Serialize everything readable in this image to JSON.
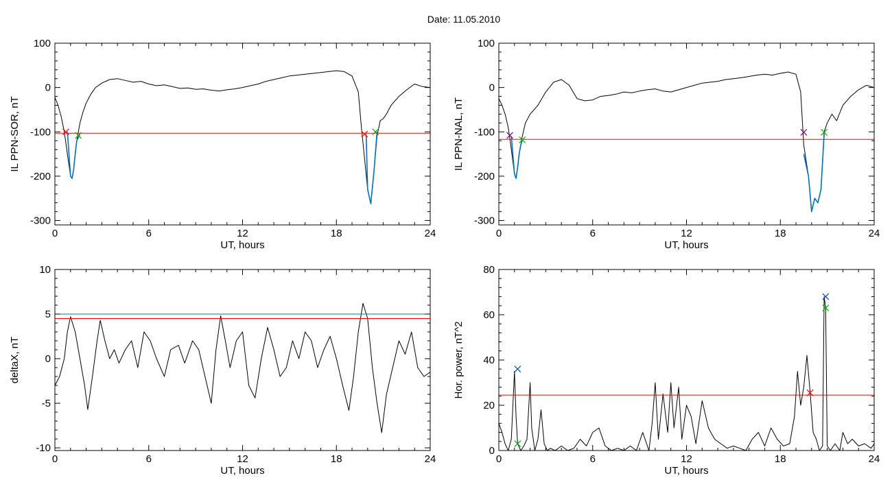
{
  "page_title": "Date:  11.05.2010",
  "chart_data": [
    {
      "type": "line",
      "ylabel": "IL PPN-SOR, nT",
      "xlabel": "UT, hours",
      "xlim": [
        0,
        24
      ],
      "ylim": [
        -310,
        100
      ],
      "xticks": [
        0,
        6,
        12,
        18,
        24
      ],
      "yticks": [
        -300,
        -200,
        -100,
        0,
        100
      ],
      "grid": false,
      "colors": {
        "signal": "#000000",
        "segment": "#0070c0",
        "threshold": "#ff0000",
        "start_marker": "#ff0000",
        "end_marker": "#00b000"
      },
      "series": [
        {
          "role": "signal",
          "x": [
            0,
            0.2,
            0.4,
            0.6,
            0.8,
            1.0,
            1.1,
            1.2,
            1.3,
            1.4,
            1.5,
            1.6,
            1.8,
            2.0,
            2.3,
            2.6,
            3.0,
            3.5,
            4.0,
            4.5,
            5.0,
            5.5,
            6.0,
            6.5,
            7.0,
            7.5,
            8.0,
            8.5,
            9.0,
            9.5,
            10.0,
            10.5,
            11.0,
            11.5,
            12.0,
            12.5,
            13.0,
            13.5,
            14.0,
            14.5,
            15.0,
            15.5,
            16.0,
            16.5,
            17.0,
            17.5,
            18.0,
            18.5,
            19.0,
            19.4,
            19.6,
            19.8,
            20.0,
            20.2,
            20.4,
            20.6,
            20.8,
            21.0,
            21.2,
            21.5,
            22.0,
            22.5,
            23.0,
            23.5,
            24.0
          ],
          "y": [
            -22,
            -40,
            -65,
            -100,
            -150,
            -200,
            -205,
            -185,
            -150,
            -120,
            -100,
            -80,
            -55,
            -35,
            -15,
            0,
            10,
            18,
            20,
            16,
            12,
            14,
            8,
            4,
            6,
            2,
            -2,
            -1,
            -4,
            -3,
            -6,
            -8,
            -5,
            -3,
            0,
            4,
            8,
            14,
            18,
            22,
            26,
            28,
            30,
            32,
            34,
            36,
            38,
            36,
            26,
            -10,
            -90,
            -160,
            -230,
            -262,
            -190,
            -110,
            -75,
            -70,
            -60,
            -40,
            -20,
            -5,
            8,
            2,
            0
          ]
        },
        {
          "role": "segment",
          "x": [
            0.8,
            1.0,
            1.1,
            1.2,
            1.3,
            1.4,
            1.6
          ],
          "y": [
            -100,
            -200,
            -205,
            -185,
            -150,
            -120,
            -105
          ]
        },
        {
          "role": "segment",
          "x": [
            19.9,
            20.0,
            20.2,
            20.4,
            20.6
          ],
          "y": [
            -105,
            -230,
            -262,
            -190,
            -100
          ]
        },
        {
          "role": "threshold",
          "x": [
            0,
            24
          ],
          "y": [
            -103,
            -103
          ]
        }
      ],
      "markers": [
        {
          "role": "start_marker",
          "x": 0.7,
          "y": -100
        },
        {
          "role": "end_marker",
          "x": 1.5,
          "y": -108
        },
        {
          "role": "start_marker",
          "x": 19.8,
          "y": -105
        },
        {
          "role": "end_marker",
          "x": 20.5,
          "y": -100
        }
      ]
    },
    {
      "type": "line",
      "ylabel": "IL PPN-NAL, nT",
      "xlabel": "UT, hours",
      "xlim": [
        0,
        24
      ],
      "ylim": [
        -310,
        100
      ],
      "xticks": [
        0,
        6,
        12,
        18,
        24
      ],
      "yticks": [
        -300,
        -200,
        -100,
        0,
        100
      ],
      "grid": false,
      "colors": {
        "signal": "#000000",
        "segment": "#0070c0",
        "threshold": "#ff0000",
        "start_marker": "#800080",
        "end_marker": "#00b000"
      },
      "series": [
        {
          "role": "signal",
          "x": [
            0,
            0.2,
            0.4,
            0.6,
            0.8,
            1.0,
            1.1,
            1.2,
            1.3,
            1.4,
            1.5,
            1.7,
            2.0,
            2.5,
            3.0,
            3.5,
            4.0,
            4.5,
            5.0,
            5.5,
            6.0,
            6.5,
            7.0,
            7.5,
            8.0,
            8.5,
            9.0,
            9.5,
            10.0,
            10.5,
            11.0,
            11.5,
            12.0,
            12.5,
            13.0,
            13.5,
            14.0,
            14.5,
            15.0,
            15.5,
            16.0,
            16.5,
            17.0,
            17.5,
            18.0,
            18.5,
            19.0,
            19.3,
            19.5,
            19.8,
            20.0,
            20.2,
            20.4,
            20.6,
            20.8,
            21.0,
            21.3,
            21.6,
            22.0,
            22.5,
            23.0,
            23.5,
            24.0
          ],
          "y": [
            -25,
            -40,
            -60,
            -90,
            -140,
            -195,
            -205,
            -180,
            -150,
            -130,
            -110,
            -80,
            -60,
            -40,
            -10,
            12,
            18,
            5,
            -25,
            -30,
            -28,
            -20,
            -18,
            -15,
            -10,
            -12,
            -8,
            -5,
            -3,
            -8,
            -10,
            -5,
            0,
            5,
            10,
            12,
            14,
            18,
            20,
            22,
            25,
            28,
            30,
            28,
            32,
            35,
            30,
            -10,
            -130,
            -200,
            -280,
            -250,
            -260,
            -230,
            -100,
            -80,
            -60,
            -75,
            -40,
            -20,
            -5,
            5,
            0
          ]
        },
        {
          "role": "segment",
          "x": [
            0.8,
            1.0,
            1.1,
            1.2,
            1.3,
            1.4,
            1.5
          ],
          "y": [
            -110,
            -195,
            -205,
            -180,
            -150,
            -130,
            -118
          ]
        },
        {
          "role": "segment",
          "x": [
            19.5,
            19.8,
            20.0,
            20.2,
            20.4,
            20.6,
            20.8
          ],
          "y": [
            -150,
            -200,
            -280,
            -250,
            -260,
            -230,
            -105
          ]
        },
        {
          "role": "threshold",
          "x": [
            0,
            24
          ],
          "y": [
            -117,
            -117
          ]
        }
      ],
      "markers": [
        {
          "role": "start_marker",
          "x": 0.7,
          "y": -108
        },
        {
          "role": "end_marker",
          "x": 1.5,
          "y": -118
        },
        {
          "role": "start_marker",
          "x": 19.5,
          "y": -101
        },
        {
          "role": "end_marker",
          "x": 20.8,
          "y": -101
        }
      ]
    },
    {
      "type": "line",
      "ylabel": "deltaX, nT",
      "xlabel": "UT, hours",
      "xlim": [
        0,
        24
      ],
      "ylim": [
        -10.3,
        10
      ],
      "xticks": [
        0,
        6,
        12,
        18,
        24
      ],
      "yticks": [
        -10,
        -5,
        0,
        5,
        10
      ],
      "grid": false,
      "colors": {
        "signal": "#000000",
        "level_a": "#008080",
        "level_b": "#ff0000"
      },
      "series": [
        {
          "role": "signal",
          "x": [
            0,
            0.3,
            0.6,
            0.8,
            1.0,
            1.3,
            1.6,
            1.9,
            2.1,
            2.4,
            2.7,
            2.9,
            3.2,
            3.5,
            3.8,
            4.1,
            4.5,
            4.9,
            5.3,
            5.7,
            6.1,
            6.5,
            7.0,
            7.4,
            7.9,
            8.3,
            8.8,
            9.2,
            9.6,
            10.0,
            10.3,
            10.6,
            10.9,
            11.2,
            11.6,
            12.0,
            12.4,
            12.8,
            13.2,
            13.6,
            14.0,
            14.4,
            14.8,
            15.2,
            15.6,
            16.0,
            16.4,
            16.8,
            17.2,
            17.6,
            18.0,
            18.4,
            18.8,
            19.1,
            19.4,
            19.7,
            20.0,
            20.3,
            20.6,
            20.9,
            21.2,
            21.6,
            22.0,
            22.4,
            22.8,
            23.2,
            23.6,
            24.0
          ],
          "y": [
            -3,
            -2,
            0,
            3,
            4.7,
            3,
            0,
            -3,
            -5.7,
            -2,
            2,
            4.3,
            2,
            0,
            1,
            -0.5,
            1,
            2,
            -1,
            3,
            2,
            0,
            -2,
            1,
            1.5,
            -0.5,
            2,
            1,
            -2,
            -5,
            1,
            4.8,
            2,
            -1,
            2,
            3,
            -3,
            -4.4,
            0,
            3.5,
            1,
            -2,
            -1,
            2,
            0,
            3,
            2,
            -1,
            1,
            2.5,
            0,
            -3,
            -5.8,
            -2,
            3,
            6.2,
            4.5,
            -1,
            -5,
            -8.3,
            -4,
            -1,
            2,
            0.5,
            3,
            -1,
            -2,
            -1.5
          ]
        },
        {
          "role": "level_a",
          "x": [
            0,
            24
          ],
          "y": [
            5,
            5
          ]
        },
        {
          "role": "level_b",
          "x": [
            0,
            24
          ],
          "y": [
            4.5,
            4.5
          ]
        }
      ],
      "markers": []
    },
    {
      "type": "line",
      "ylabel": "Hor. power, nT^2",
      "xlabel": "UT, hours",
      "xlim": [
        0,
        24
      ],
      "ylim": [
        0,
        80
      ],
      "xticks": [
        0,
        6,
        12,
        18,
        24
      ],
      "yticks": [
        0,
        20,
        40,
        60,
        80
      ],
      "grid": false,
      "colors": {
        "signal": "#000000",
        "threshold": "#ff0000",
        "peak_marker": "#0050c0",
        "low_marker": "#00b000",
        "mid_marker": "#ff0000"
      },
      "series": [
        {
          "role": "signal",
          "x": [
            0,
            0.2,
            0.4,
            0.6,
            0.8,
            1.0,
            1.1,
            1.2,
            1.4,
            1.6,
            1.8,
            2.0,
            2.1,
            2.3,
            2.5,
            2.7,
            2.9,
            3.1,
            3.3,
            3.6,
            4.0,
            4.4,
            4.8,
            5.2,
            5.6,
            6.0,
            6.4,
            6.8,
            7.2,
            7.6,
            8.0,
            8.4,
            8.8,
            9.2,
            9.6,
            9.8,
            10.0,
            10.2,
            10.5,
            10.8,
            11.0,
            11.2,
            11.5,
            11.7,
            12.0,
            12.3,
            12.6,
            13.0,
            13.4,
            13.8,
            14.2,
            14.6,
            15.0,
            15.4,
            15.8,
            16.2,
            16.6,
            17.0,
            17.4,
            17.8,
            18.2,
            18.6,
            18.9,
            19.1,
            19.3,
            19.5,
            19.7,
            19.9,
            20.1,
            20.3,
            20.5,
            20.7,
            20.8,
            20.9,
            21.0,
            21.2,
            21.5,
            21.8,
            22.0,
            22.3,
            22.6,
            23.0,
            23.4,
            23.8,
            24.0
          ],
          "y": [
            12,
            8,
            3,
            0,
            5,
            35,
            15,
            3,
            0,
            2,
            5,
            30,
            10,
            0,
            5,
            18,
            3,
            0,
            1,
            0,
            2,
            0,
            1,
            5,
            2,
            8,
            10,
            2,
            0,
            1,
            0,
            2,
            0,
            8,
            0,
            12,
            30,
            5,
            25,
            8,
            30,
            10,
            28,
            5,
            20,
            15,
            3,
            22,
            10,
            5,
            3,
            1,
            2,
            1,
            0,
            5,
            8,
            2,
            10,
            5,
            2,
            3,
            15,
            35,
            20,
            28,
            42,
            26,
            8,
            5,
            0,
            2,
            68,
            63,
            2,
            0,
            3,
            0,
            8,
            3,
            5,
            2,
            3,
            1,
            3
          ]
        },
        {
          "role": "threshold",
          "x": [
            0,
            24
          ],
          "y": [
            24.5,
            24.5
          ]
        }
      ],
      "markers": [
        {
          "role": "peak_marker",
          "x": 1.2,
          "y": 36
        },
        {
          "role": "low_marker",
          "x": 1.2,
          "y": 3
        },
        {
          "role": "mid_marker",
          "x": 19.9,
          "y": 25.5
        },
        {
          "role": "peak_marker",
          "x": 20.9,
          "y": 68
        },
        {
          "role": "low_marker",
          "x": 20.9,
          "y": 63
        }
      ]
    }
  ]
}
